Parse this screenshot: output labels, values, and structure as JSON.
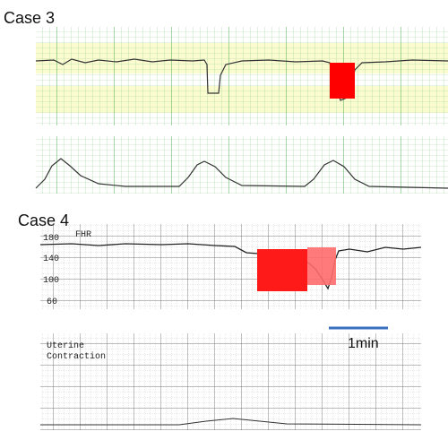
{
  "case3": {
    "title": "Case 3"
  },
  "case4": {
    "title": "Case 4",
    "fhr_label": "FHR",
    "scale": [
      "180",
      "140",
      "100",
      "60"
    ],
    "uterine_label": [
      "Uterine",
      "Contraction"
    ],
    "scale_bar": "1min"
  }
}
